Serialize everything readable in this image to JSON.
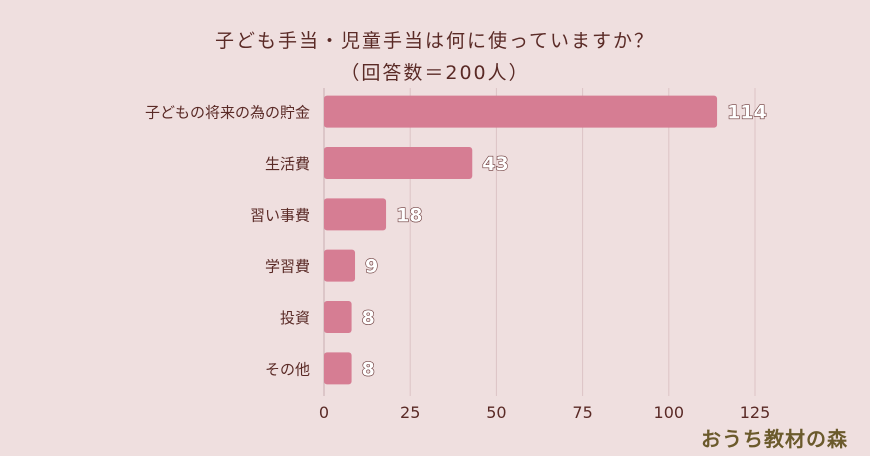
{
  "chart_data": {
    "type": "bar",
    "orientation": "horizontal",
    "title": "子ども手当・児童手当は何に使っていますか？",
    "subtitle": "（回答数＝200人）",
    "categories": [
      "子どもの将来の為の貯金",
      "生活費",
      "習い事費",
      "学習費",
      "投資",
      "その他"
    ],
    "values": [
      114,
      43,
      18,
      9,
      8,
      8
    ],
    "xlim": [
      0,
      125
    ],
    "xticks": [
      0,
      25,
      50,
      75,
      100,
      125
    ],
    "grid": true,
    "bar_color": "#d67d93",
    "text_color": "#5a2a26"
  },
  "logo": "おうち教材の森"
}
